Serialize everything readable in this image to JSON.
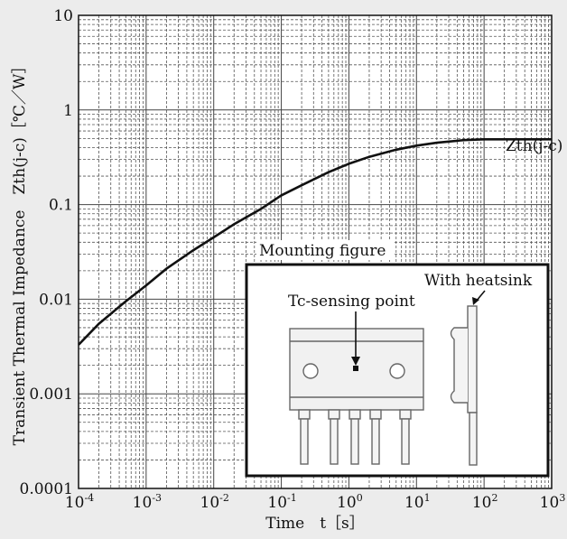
{
  "chart_data": {
    "type": "line",
    "title": "",
    "xlabel": "Time　t［s］",
    "ylabel": "Transient Thermal Impedance　Zth(j-c)［℃／W］",
    "x_scale": "log",
    "y_scale": "log",
    "xlim": [
      0.0001,
      1000
    ],
    "ylim": [
      0.0001,
      10
    ],
    "grid": true,
    "x_ticks": [
      {
        "base": "10",
        "exp": "-4"
      },
      {
        "base": "10",
        "exp": "-3"
      },
      {
        "base": "10",
        "exp": "-2"
      },
      {
        "base": "10",
        "exp": "-1"
      },
      {
        "base": "10",
        "exp": "0"
      },
      {
        "base": "10",
        "exp": "1"
      },
      {
        "base": "10",
        "exp": "2"
      },
      {
        "base": "10",
        "exp": "3"
      }
    ],
    "y_ticks": [
      "0.0001",
      "0.001",
      "0.01",
      "0.1",
      "1",
      "10"
    ],
    "series": [
      {
        "name": "Zth(j-c)",
        "x": [
          0.0001,
          0.0002,
          0.0005,
          0.001,
          0.002,
          0.005,
          0.01,
          0.02,
          0.05,
          0.1,
          0.2,
          0.5,
          1,
          2,
          5,
          10,
          20,
          50,
          100,
          200,
          1000
        ],
        "y": [
          0.0033,
          0.0055,
          0.0095,
          0.014,
          0.021,
          0.033,
          0.045,
          0.062,
          0.09,
          0.125,
          0.16,
          0.22,
          0.27,
          0.32,
          0.38,
          0.42,
          0.45,
          0.48,
          0.49,
          0.49,
          0.49
        ]
      }
    ],
    "annotations": {
      "curve_label": "Zth(j-c)",
      "inset_title": "Mounting figure",
      "inset_labels": [
        "Tc-sensing point",
        "With heatsink"
      ]
    }
  }
}
